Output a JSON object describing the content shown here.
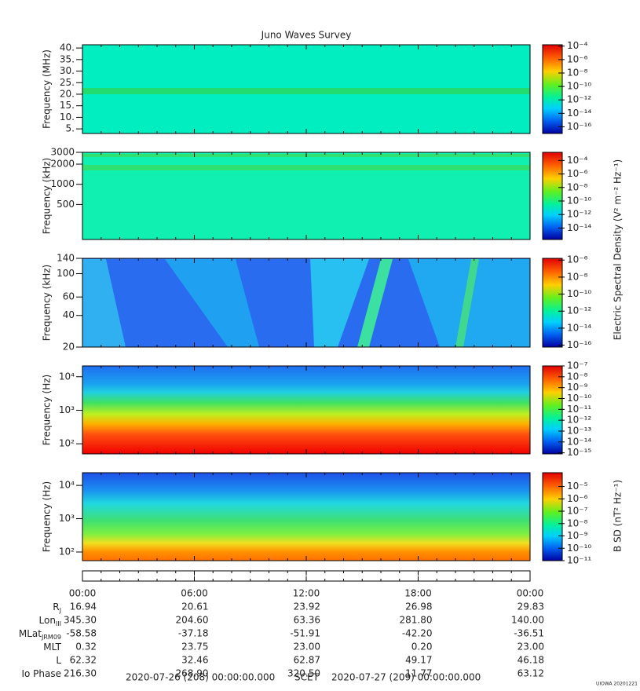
{
  "title": "Juno Waves Survey",
  "chart_data": [
    {
      "type": "spectrogram",
      "ylabel": "Frequency (MHz)",
      "ylog": false,
      "ylim": [
        3,
        41.4
      ],
      "yticks": [
        {
          "value": 40,
          "label": "40."
        },
        {
          "value": 35,
          "label": "35."
        },
        {
          "value": 30,
          "label": "30."
        },
        {
          "value": 25,
          "label": "25."
        },
        {
          "value": 20,
          "label": "20."
        },
        {
          "value": 15,
          "label": "15."
        },
        {
          "value": 10,
          "label": "10."
        },
        {
          "value": 5,
          "label": "5."
        }
      ],
      "colorbar": {
        "log": true,
        "lim": [
          1e-17,
          0.00016
        ],
        "ticks": [
          {
            "value": 0.0001,
            "label": "10⁻⁴"
          },
          {
            "value": 1e-06,
            "label": "10⁻⁶"
          },
          {
            "value": 1e-08,
            "label": "10⁻⁸"
          },
          {
            "value": 1e-10,
            "label": "10⁻¹⁰"
          },
          {
            "value": 1e-12,
            "label": "10⁻¹²"
          },
          {
            "value": 1e-14,
            "label": "10⁻¹⁴"
          },
          {
            "value": 1e-16,
            "label": "10⁻¹⁶"
          }
        ]
      }
    },
    {
      "type": "spectrogram",
      "ylabel": "Frequency (kHz)",
      "ylog": true,
      "ylim": [
        150,
        3000
      ],
      "yticks": [
        3000,
        2000,
        1000,
        500
      ],
      "colorbar": {
        "log": true,
        "lim": [
          2e-16,
          0.0016
        ],
        "ticks": [
          {
            "value": 0.0001,
            "label": "10⁻⁴"
          },
          {
            "value": 1e-06,
            "label": "10⁻⁶"
          },
          {
            "value": 1e-08,
            "label": "10⁻⁸"
          },
          {
            "value": 1e-10,
            "label": "10⁻¹⁰"
          },
          {
            "value": 1e-12,
            "label": "10⁻¹²"
          },
          {
            "value": 1e-14,
            "label": "10⁻¹⁴"
          }
        ]
      }
    },
    {
      "type": "spectrogram",
      "ylabel": "Frequency (kHz)",
      "ylog": true,
      "ylim": [
        20,
        140
      ],
      "yticks": [
        140,
        100,
        60,
        40,
        20
      ],
      "colorbar": {
        "log": true,
        "lim": [
          6e-17,
          1.6e-06
        ],
        "ticks": [
          {
            "value": 1e-06,
            "label": "10⁻⁶"
          },
          {
            "value": 1e-08,
            "label": "10⁻⁸"
          },
          {
            "value": 1e-10,
            "label": "10⁻¹⁰"
          },
          {
            "value": 1e-12,
            "label": "10⁻¹²"
          },
          {
            "value": 1e-14,
            "label": "10⁻¹⁴"
          },
          {
            "value": 1e-16,
            "label": "10⁻¹⁶"
          }
        ]
      }
    },
    {
      "type": "spectrogram",
      "ylabel": "Frequency (Hz)",
      "ylog": true,
      "ylim": [
        50,
        21000
      ],
      "yticks": [
        {
          "value": 10000,
          "label": "10⁴"
        },
        {
          "value": 1000,
          "label": "10³"
        },
        {
          "value": 100,
          "label": "10²"
        }
      ],
      "colorbar": {
        "log": true,
        "lim": [
          8e-16,
          1e-07
        ],
        "ticks": [
          {
            "value": 1e-07,
            "label": "10⁻⁷"
          },
          {
            "value": 1e-08,
            "label": "10⁻⁸"
          },
          {
            "value": 1e-09,
            "label": "10⁻⁹"
          },
          {
            "value": 1e-10,
            "label": "10⁻¹⁰"
          },
          {
            "value": 1e-11,
            "label": "10⁻¹¹"
          },
          {
            "value": 1e-12,
            "label": "10⁻¹²"
          },
          {
            "value": 1e-13,
            "label": "10⁻¹³"
          },
          {
            "value": 1e-14,
            "label": "10⁻¹⁴"
          },
          {
            "value": 1e-15,
            "label": "10⁻¹⁵"
          }
        ]
      }
    },
    {
      "type": "spectrogram",
      "ylabel": "Frequency (Hz)",
      "ylog": true,
      "ylim": [
        55,
        24000
      ],
      "yticks": [
        {
          "value": 10000,
          "label": "10⁴"
        },
        {
          "value": 1000,
          "label": "10³"
        },
        {
          "value": 100,
          "label": "10²"
        }
      ],
      "colorbar": {
        "log": true,
        "lim": [
          1e-11,
          0.00013
        ],
        "ticks": [
          {
            "value": 1e-05,
            "label": "10⁻⁵"
          },
          {
            "value": 1e-06,
            "label": "10⁻⁶"
          },
          {
            "value": 1e-07,
            "label": "10⁻⁷"
          },
          {
            "value": 1e-08,
            "label": "10⁻⁸"
          },
          {
            "value": 1e-09,
            "label": "10⁻⁹"
          },
          {
            "value": 1e-10,
            "label": "10⁻¹⁰"
          },
          {
            "value": 1e-11,
            "label": "10⁻¹¹"
          }
        ]
      }
    }
  ],
  "colorbar_labels": [
    "Electric Spectral Density (V² m⁻² Hz⁻¹)",
    "B SD (nT² Hz⁻¹)"
  ],
  "time_axis": {
    "xlim": [
      0,
      24
    ],
    "xticks": [
      {
        "value": 0,
        "label": "00:00"
      },
      {
        "value": 6,
        "label": "06:00"
      },
      {
        "value": 12,
        "label": "12:00"
      },
      {
        "value": 18,
        "label": "18:00"
      },
      {
        "value": 24,
        "label": "00:00"
      }
    ]
  },
  "ephemeris": {
    "rows": [
      {
        "label": "R",
        "sub": "J",
        "values": [
          "16.94",
          "20.61",
          "23.92",
          "26.98",
          "29.83"
        ]
      },
      {
        "label": "Lon",
        "sub": "III",
        "values": [
          "345.30",
          "204.60",
          "63.36",
          "281.80",
          "140.00"
        ]
      },
      {
        "label": "MLat",
        "sub": "JRM09",
        "values": [
          "-58.58",
          "-37.18",
          "-51.91",
          "-42.20",
          "-36.51"
        ]
      },
      {
        "label": "MLT",
        "values": [
          "0.32",
          "23.75",
          "23.00",
          "0.20",
          "23.00"
        ]
      },
      {
        "label": "L",
        "values": [
          "62.32",
          "32.46",
          "62.87",
          "49.17",
          "46.18"
        ]
      },
      {
        "label": "Io Phase",
        "values": [
          "216.30",
          "268.90",
          "320.50",
          "11.77",
          "63.12"
        ]
      }
    ]
  },
  "scet": {
    "start": "2020-07-26 (208) 00:00:00.000",
    "label": "SCET",
    "end": "2020-07-27 (209) 00:00:00.000"
  },
  "stamp": "UIOWA 20201221"
}
